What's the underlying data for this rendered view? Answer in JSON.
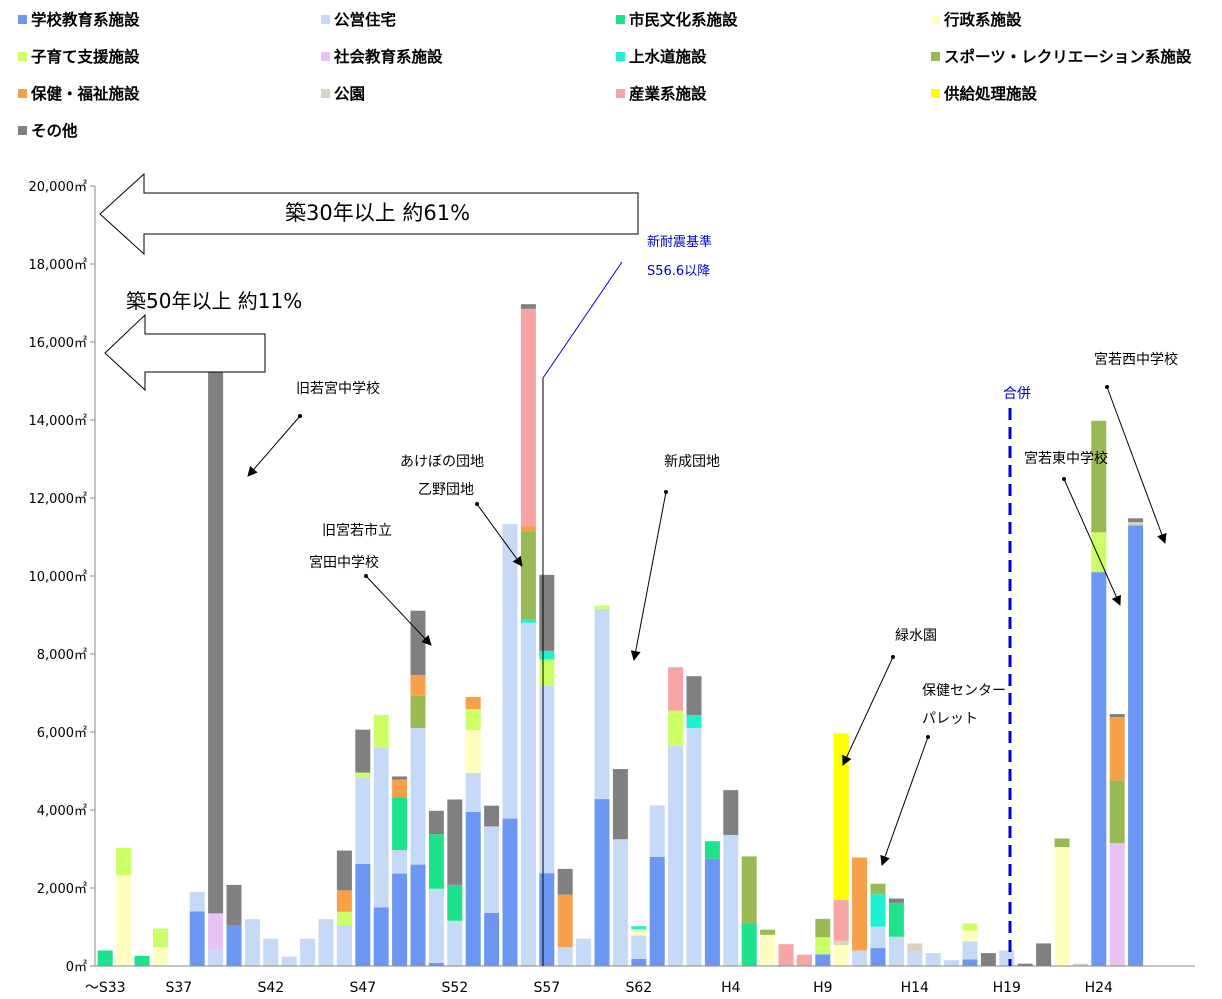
{
  "legend": [
    {
      "label": "学校教育系施設",
      "color": "#6b97f3"
    },
    {
      "label": "公営住宅",
      "color": "#c6d9f7"
    },
    {
      "label": "市民文化系施設",
      "color": "#1ee28c"
    },
    {
      "label": "行政系施設",
      "color": "#ffffc0"
    },
    {
      "label": "子育て支援施設",
      "color": "#ccff66"
    },
    {
      "label": "社会教育系施設",
      "color": "#e6c2f5"
    },
    {
      "label": "上水道施設",
      "color": "#1ef0d2"
    },
    {
      "label": "スポーツ・レクリエーション系施設",
      "color": "#99b954"
    },
    {
      "label": "保健・福祉施設",
      "color": "#f7a04a"
    },
    {
      "label": "公園",
      "color": "#d9d4c0"
    },
    {
      "label": "産業系施設",
      "color": "#f7a4a4"
    },
    {
      "label": "供給処理施設",
      "color": "#ffff00"
    },
    {
      "label": "その他",
      "color": "#808080"
    }
  ],
  "annotations": {
    "arrow30": "築30年以上 約61%",
    "arrow50": "築50年以上 約11%",
    "shintaishin1": "新耐震基準",
    "shintaishin2": "S56.6以降",
    "gappei": "合併",
    "kyuwakamiya": "旧若宮中学校",
    "miyata1": "旧宮若市立",
    "miyata2": "宮田中学校",
    "akebono1": "あけぼの団地",
    "akebono2": "乙野団地",
    "shinsei": "新成団地",
    "ryokusui": "緑水園",
    "hoken1": "保健センター",
    "hoken2": "パレット",
    "higashi": "宮若東中学校",
    "nishi": "宮若西中学校"
  },
  "chart_data": {
    "type": "bar",
    "stacked": true,
    "ylim": [
      0,
      20000
    ],
    "y_ticks": [
      "0㎡",
      "2,000㎡",
      "4,000㎡",
      "6,000㎡",
      "8,000㎡",
      "10,000㎡",
      "12,000㎡",
      "14,000㎡",
      "16,000㎡",
      "18,000㎡",
      "20,000㎡"
    ],
    "x_tick_labels": [
      "～S33",
      "S37",
      "S42",
      "S47",
      "S52",
      "S57",
      "S62",
      "H4",
      "H9",
      "H14",
      "H19",
      "H24"
    ],
    "categories": [
      "～S33",
      "S34",
      "S35",
      "S36",
      "S37",
      "S38",
      "S39",
      "S40",
      "S41",
      "S42",
      "S43",
      "S44",
      "S45",
      "S46",
      "S47",
      "S48",
      "S49",
      "S50",
      "S51",
      "S52",
      "S53",
      "S54",
      "S55",
      "S56",
      "S57",
      "S58",
      "S59",
      "S60",
      "S61",
      "S62",
      "S63",
      "H1",
      "H2",
      "H3",
      "H4",
      "H5",
      "H6",
      "H7",
      "H8",
      "H9",
      "H10",
      "H11",
      "H12",
      "H13",
      "H14",
      "H15",
      "H16",
      "H17",
      "H18",
      "H19",
      "H20",
      "H21",
      "H22",
      "H23",
      "H24",
      "H25",
      "H26"
    ],
    "series": [
      {
        "name": "学校教育系施設",
        "values": [
          0,
          0,
          0,
          0,
          0,
          1400,
          0,
          1050,
          0,
          0,
          0,
          0,
          0,
          0,
          2620,
          1500,
          2370,
          2600,
          80,
          0,
          3950,
          1360,
          3780,
          0,
          2380,
          0,
          0,
          4280,
          0,
          180,
          2800,
          0,
          0,
          2750,
          0,
          0,
          0,
          0,
          0,
          300,
          0,
          0,
          460,
          0,
          0,
          0,
          0,
          170,
          0,
          0,
          0,
          0,
          0,
          0,
          10100,
          0,
          11300
        ]
      },
      {
        "name": "公営住宅",
        "values": [
          0,
          0,
          0,
          0,
          0,
          500,
          400,
          0,
          1200,
          700,
          240,
          700,
          1200,
          1050,
          2200,
          4100,
          600,
          3500,
          1900,
          1160,
          1000,
          2220,
          7550,
          8800,
          4800,
          480,
          700,
          4880,
          3250,
          600,
          1320,
          5650,
          6100,
          0,
          3360,
          0,
          0,
          0,
          0,
          0,
          0,
          400,
          550,
          750,
          380,
          330,
          150,
          460,
          0,
          400,
          0,
          0,
          0,
          0,
          0,
          0,
          0
        ]
      },
      {
        "name": "市民文化系施設",
        "values": [
          400,
          0,
          260,
          0,
          0,
          0,
          0,
          0,
          0,
          0,
          0,
          0,
          0,
          0,
          0,
          0,
          1360,
          0,
          1400,
          920,
          0,
          0,
          0,
          0,
          0,
          0,
          0,
          0,
          0,
          0,
          0,
          0,
          0,
          450,
          0,
          1100,
          0,
          0,
          0,
          0,
          0,
          0,
          0,
          870,
          0,
          0,
          0,
          0,
          0,
          0,
          0,
          0,
          0,
          0,
          0,
          0,
          0
        ]
      },
      {
        "name": "行政系施設",
        "values": [
          0,
          2330,
          0,
          480,
          0,
          0,
          0,
          0,
          0,
          0,
          0,
          0,
          0,
          0,
          0,
          0,
          0,
          0,
          0,
          0,
          1100,
          0,
          0,
          0,
          0,
          0,
          0,
          0,
          0,
          160,
          0,
          0,
          0,
          0,
          0,
          0,
          800,
          0,
          0,
          0,
          540,
          0,
          0,
          0,
          0,
          0,
          0,
          280,
          0,
          0,
          0,
          0,
          3050,
          0,
          0,
          0,
          0
        ]
      },
      {
        "name": "子育て支援施設",
        "values": [
          0,
          700,
          0,
          480,
          0,
          0,
          0,
          0,
          0,
          0,
          0,
          0,
          0,
          340,
          140,
          840,
          0,
          0,
          0,
          0,
          540,
          0,
          0,
          0,
          680,
          0,
          0,
          80,
          0,
          0,
          0,
          900,
          0,
          0,
          0,
          0,
          0,
          0,
          0,
          440,
          0,
          0,
          0,
          0,
          0,
          0,
          0,
          180,
          0,
          0,
          0,
          0,
          0,
          0,
          1020,
          0,
          0
        ]
      },
      {
        "name": "社会教育系施設",
        "values": [
          0,
          0,
          0,
          0,
          0,
          0,
          950,
          0,
          0,
          0,
          0,
          0,
          0,
          0,
          0,
          0,
          0,
          0,
          0,
          0,
          0,
          0,
          0,
          0,
          0,
          0,
          0,
          0,
          0,
          0,
          0,
          0,
          0,
          0,
          0,
          0,
          0,
          0,
          0,
          0,
          0,
          0,
          0,
          0,
          0,
          0,
          0,
          0,
          0,
          0,
          0,
          0,
          0,
          0,
          0,
          3150,
          0
        ]
      },
      {
        "name": "上水道施設",
        "values": [
          0,
          0,
          0,
          0,
          0,
          0,
          0,
          0,
          0,
          0,
          0,
          0,
          0,
          0,
          0,
          0,
          0,
          0,
          0,
          0,
          0,
          0,
          0,
          80,
          220,
          0,
          0,
          0,
          0,
          80,
          0,
          0,
          330,
          0,
          0,
          0,
          0,
          0,
          0,
          0,
          0,
          0,
          830,
          0,
          0,
          0,
          0,
          0,
          0,
          0,
          0,
          0,
          0,
          0,
          0,
          0,
          0
        ]
      },
      {
        "name": "スポーツ・レクリエーション系施設",
        "values": [
          0,
          0,
          0,
          0,
          0,
          0,
          0,
          0,
          0,
          0,
          0,
          0,
          0,
          0,
          0,
          0,
          0,
          830,
          0,
          0,
          0,
          0,
          0,
          2270,
          0,
          0,
          0,
          0,
          0,
          0,
          0,
          0,
          0,
          0,
          0,
          1710,
          130,
          0,
          0,
          470,
          0,
          0,
          270,
          0,
          0,
          0,
          0,
          0,
          0,
          0,
          0,
          0,
          220,
          0,
          2860,
          1610,
          0
        ]
      },
      {
        "name": "保健・福祉施設",
        "values": [
          0,
          0,
          0,
          0,
          0,
          0,
          0,
          0,
          0,
          0,
          0,
          0,
          0,
          550,
          0,
          0,
          450,
          530,
          0,
          0,
          310,
          0,
          0,
          130,
          0,
          1350,
          0,
          0,
          0,
          0,
          0,
          0,
          0,
          0,
          0,
          0,
          0,
          0,
          0,
          0,
          0,
          2380,
          0,
          0,
          0,
          0,
          0,
          0,
          0,
          0,
          0,
          0,
          0,
          0,
          0,
          1620,
          0
        ]
      },
      {
        "name": "公園",
        "values": [
          0,
          0,
          0,
          0,
          0,
          0,
          0,
          0,
          0,
          0,
          0,
          0,
          0,
          0,
          0,
          0,
          0,
          0,
          0,
          0,
          0,
          0,
          0,
          0,
          0,
          0,
          0,
          0,
          0,
          0,
          0,
          0,
          0,
          0,
          0,
          0,
          0,
          0,
          0,
          0,
          110,
          0,
          0,
          0,
          200,
          0,
          0,
          0,
          0,
          0,
          0,
          0,
          0,
          60,
          0,
          0,
          80
        ]
      },
      {
        "name": "産業系施設",
        "values": [
          0,
          0,
          0,
          0,
          0,
          0,
          0,
          0,
          0,
          0,
          0,
          0,
          0,
          0,
          0,
          0,
          0,
          0,
          0,
          0,
          0,
          0,
          0,
          5570,
          0,
          0,
          0,
          0,
          0,
          0,
          0,
          1110,
          0,
          0,
          0,
          0,
          0,
          560,
          290,
          0,
          1040,
          0,
          0,
          0,
          0,
          0,
          0,
          0,
          0,
          0,
          0,
          0,
          0,
          0,
          0,
          0,
          0
        ]
      },
      {
        "name": "供給処理施設",
        "values": [
          0,
          0,
          0,
          0,
          0,
          0,
          0,
          0,
          0,
          0,
          0,
          0,
          0,
          0,
          0,
          0,
          0,
          0,
          0,
          0,
          0,
          0,
          0,
          0,
          0,
          0,
          0,
          0,
          0,
          0,
          0,
          0,
          0,
          0,
          0,
          0,
          0,
          0,
          0,
          0,
          4280,
          0,
          0,
          0,
          0,
          0,
          0,
          0,
          0,
          0,
          0,
          0,
          0,
          0,
          0,
          0,
          0
        ]
      },
      {
        "name": "その他",
        "values": [
          0,
          0,
          0,
          0,
          0,
          0,
          14500,
          1030,
          0,
          0,
          0,
          0,
          0,
          1020,
          1100,
          0,
          80,
          1650,
          600,
          2190,
          0,
          530,
          0,
          120,
          1950,
          660,
          0,
          0,
          1800,
          0,
          0,
          0,
          1000,
          0,
          1150,
          0,
          0,
          0,
          0,
          0,
          0,
          0,
          0,
          110,
          0,
          0,
          0,
          0,
          330,
          0,
          60,
          580,
          0,
          0,
          0,
          80,
          100
        ]
      }
    ]
  }
}
